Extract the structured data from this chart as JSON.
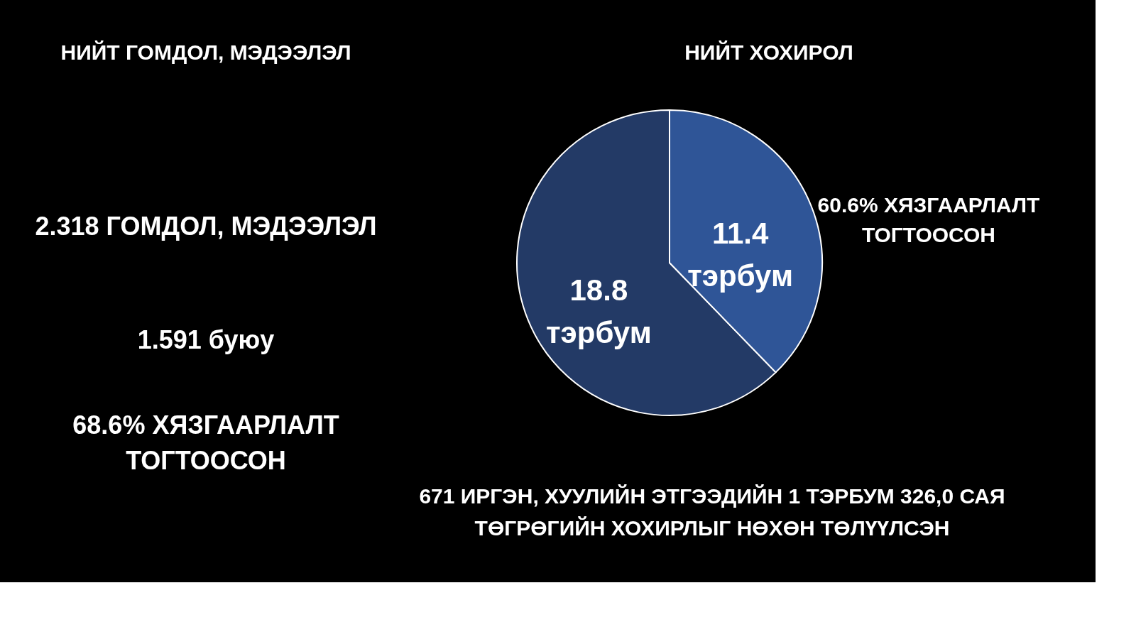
{
  "chart_data": [
    {
      "type": "other",
      "title": "НИЙТ ГОМДОЛ, МЭДЭЭЛЭЛ",
      "annotations": [
        "2.318 ГОМДОЛ, МЭДЭЭЛЭЛ",
        "1.591 буюу",
        "68.6% ХЯЗГААРЛАЛТ\nТОГТООСОН"
      ]
    },
    {
      "type": "pie",
      "title": "НИЙТ ХОХИРОЛ",
      "categories": [
        null,
        null
      ],
      "values": [
        18.8,
        11.4
      ],
      "colors": [
        "#233a66",
        "#2f5597"
      ],
      "value_labels": [
        "18.8 тэрбум",
        "11.4 тэрбум"
      ],
      "annotations": [
        "60.6% ХЯЗГААРЛАЛТ\nТОГТООСОН",
        "671 ИРГЭН, ХУУЛИЙН ЭТГЭЭДИЙН 1 ТЭРБУМ 326,0 САЯ",
        "ТӨГРӨГИЙН ХОХИРЛЫГ НӨХӨН ТӨЛҮҮЛСЭН"
      ]
    }
  ]
}
